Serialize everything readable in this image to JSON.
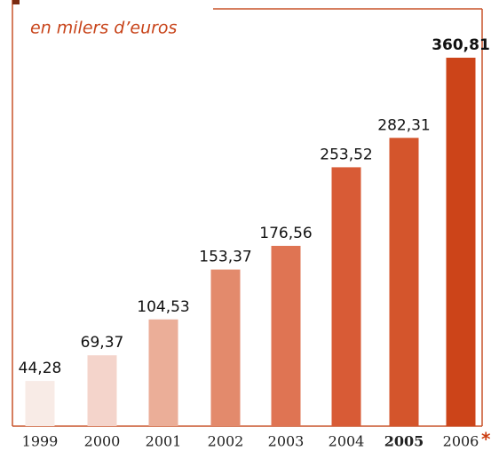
{
  "chart_data": {
    "type": "bar",
    "subtitle": "en milers d’euros",
    "categories": [
      "1999",
      "2000",
      "2001",
      "2002",
      "2003",
      "2004",
      "2005",
      "2006"
    ],
    "values": [
      44.28,
      69.37,
      104.53,
      153.37,
      176.56,
      253.52,
      282.31,
      360.81
    ],
    "value_labels": [
      "44,28",
      "69,37",
      "104,53",
      "153,37",
      "176,56",
      "253,52",
      "282,31",
      "360,81"
    ],
    "colors": [
      "#f8ebe6",
      "#f4d4cb",
      "#ebae98",
      "#e38a6c",
      "#df7453",
      "#d85b36",
      "#d4552c",
      "#cc4419"
    ],
    "footnote_marker": "*"
  }
}
